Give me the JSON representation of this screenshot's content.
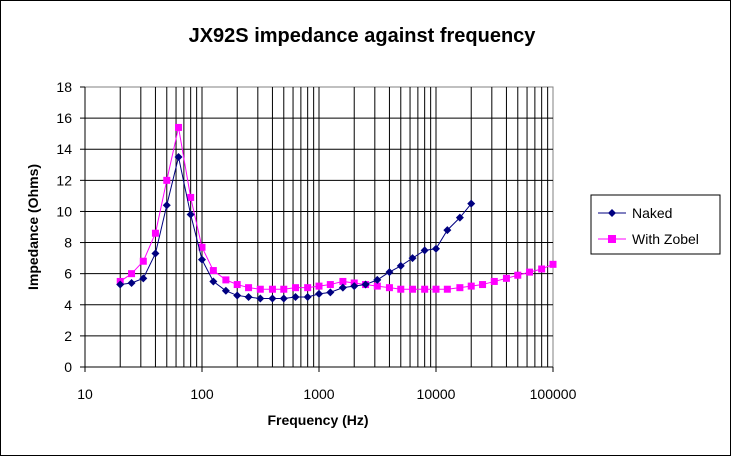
{
  "chart_data": {
    "type": "line",
    "title": "JX92S impedance against frequency",
    "xlabel": "Frequency (Hz)",
    "ylabel": "Impedance (Ohms)",
    "x_scale": "log",
    "xlim": [
      10,
      100000
    ],
    "ylim": [
      0,
      18
    ],
    "x_ticks": [
      "10",
      "100",
      "1000",
      "10000",
      "100000"
    ],
    "y_ticks": [
      "0",
      "2",
      "4",
      "6",
      "8",
      "10",
      "12",
      "14",
      "16",
      "18"
    ],
    "grid": true,
    "legend_position": "right",
    "series": [
      {
        "name": "Naked",
        "color": "#000080",
        "marker": "diamond",
        "x": [
          20,
          25,
          31.5,
          40,
          50,
          63,
          80,
          100,
          125,
          160,
          200,
          250,
          315,
          400,
          500,
          630,
          800,
          1000,
          1250,
          1600,
          2000,
          2500,
          3150,
          4000,
          5000,
          6300,
          8000,
          10000,
          12500,
          16000,
          20000
        ],
        "y": [
          5.3,
          5.4,
          5.7,
          7.3,
          10.4,
          13.5,
          9.8,
          6.9,
          5.5,
          4.9,
          4.6,
          4.5,
          4.4,
          4.4,
          4.4,
          4.5,
          4.5,
          4.7,
          4.8,
          5.1,
          5.2,
          5.3,
          5.6,
          6.1,
          6.5,
          7.0,
          7.5,
          7.6,
          8.8,
          9.6,
          10.5
        ]
      },
      {
        "name": "With Zobel",
        "color": "#ff00ff",
        "marker": "square",
        "x": [
          20,
          25,
          31.5,
          40,
          50,
          63,
          80,
          100,
          125,
          160,
          200,
          250,
          315,
          400,
          500,
          630,
          800,
          1000,
          1250,
          1600,
          2000,
          2500,
          3150,
          4000,
          5000,
          6300,
          8000,
          10000,
          12500,
          16000,
          20000,
          25000,
          31500,
          40000,
          50000,
          63000,
          80000,
          100000
        ],
        "y": [
          5.5,
          6.0,
          6.8,
          8.6,
          12.0,
          15.4,
          10.9,
          7.7,
          6.2,
          5.6,
          5.3,
          5.1,
          5.0,
          5.0,
          5.0,
          5.1,
          5.1,
          5.2,
          5.3,
          5.5,
          5.4,
          5.3,
          5.2,
          5.1,
          5.0,
          5.0,
          5.0,
          5.0,
          5.0,
          5.1,
          5.2,
          5.3,
          5.5,
          5.7,
          5.9,
          6.1,
          6.3,
          6.6
        ]
      }
    ]
  }
}
